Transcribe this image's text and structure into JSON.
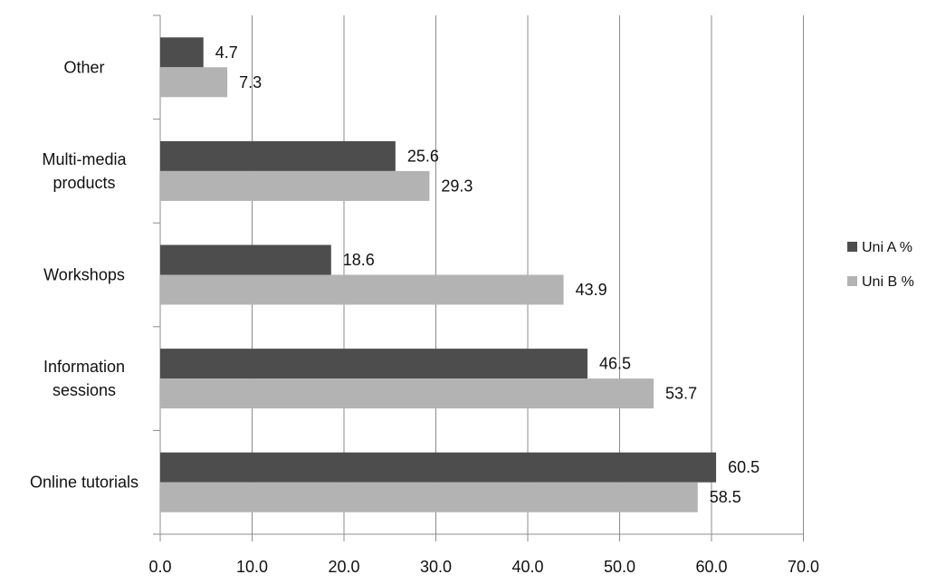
{
  "chart_data": {
    "type": "bar",
    "orientation": "horizontal",
    "title": "",
    "xlabel": "",
    "ylabel": "",
    "categories": [
      [
        "Online tutorials"
      ],
      [
        "Information",
        "sessions"
      ],
      [
        "Workshops"
      ],
      [
        "Multi-media",
        "products"
      ],
      [
        "Other"
      ]
    ],
    "series": [
      {
        "name": "Uni A %",
        "color": "#4d4d4d",
        "values": [
          60.5,
          46.5,
          18.6,
          25.6,
          4.7
        ]
      },
      {
        "name": "Uni B %",
        "color": "#b3b3b3",
        "values": [
          58.5,
          53.7,
          43.9,
          29.3,
          7.3
        ]
      }
    ],
    "xlim": [
      0,
      70
    ],
    "xticks": [
      0,
      10,
      20,
      30,
      40,
      50,
      60,
      70
    ],
    "xtick_labels": [
      "0.0",
      "10.0",
      "20.0",
      "30.0",
      "40.0",
      "50.0",
      "60.0",
      "70.0"
    ],
    "grid": "vertical",
    "legend_position": "right",
    "data_labels": true
  }
}
